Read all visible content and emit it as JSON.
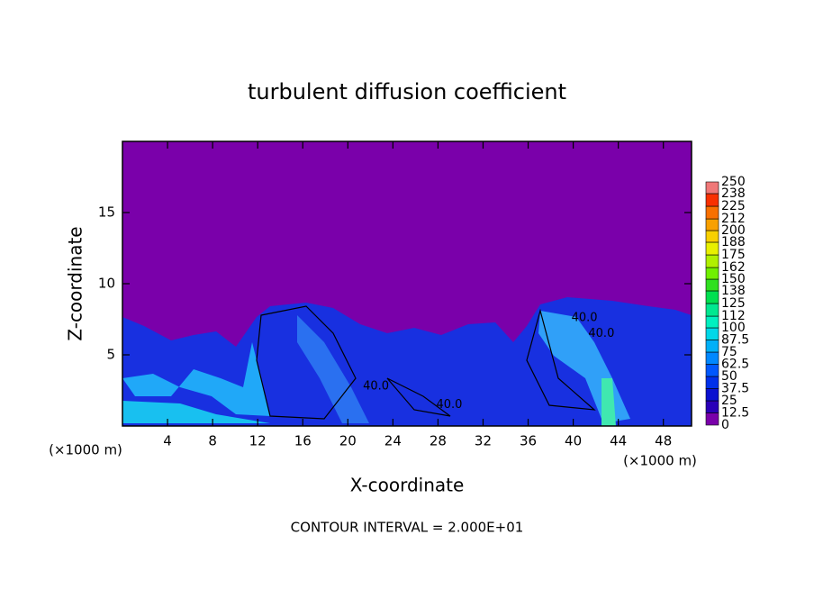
{
  "chart_data": {
    "type": "contour",
    "title": "turbulent diffusion coefficient",
    "xlabel": "X-coordinate",
    "ylabel": "Z-coordinate",
    "x_unit": "(×1000 m)",
    "footer": "CONTOUR INTERVAL = 2.000E+01",
    "xlim": [
      0,
      50.5
    ],
    "ylim": [
      0,
      20
    ],
    "xticks": [
      4,
      8,
      12,
      16,
      20,
      24,
      28,
      32,
      36,
      40,
      44,
      48
    ],
    "yticks": [
      5,
      10,
      15
    ],
    "contour_labels": [
      {
        "text": "40.0",
        "x": 41,
        "y": 7.6
      },
      {
        "text": "40.0",
        "x": 42.5,
        "y": 6.5
      },
      {
        "text": "40.0",
        "x": 22.5,
        "y": 2.8
      },
      {
        "text": "40.0",
        "x": 29,
        "y": 1.5
      }
    ],
    "colorbar": {
      "levels": [
        0,
        12.5,
        25,
        37.5,
        50,
        62.5,
        75,
        87.5,
        100,
        112,
        125,
        138,
        150,
        162,
        175,
        188,
        200,
        212,
        225,
        238,
        250
      ],
      "colors": [
        "#7a00aa",
        "#2a00b8",
        "#0a10d0",
        "#0030ea",
        "#0058ff",
        "#0088ff",
        "#00b0f8",
        "#00d8e8",
        "#00f0c0",
        "#00e890",
        "#00e050",
        "#30e020",
        "#70f000",
        "#b0f000",
        "#e8f000",
        "#f8d000",
        "#f8a000",
        "#f87000",
        "#f83000",
        "#f07878"
      ]
    }
  }
}
